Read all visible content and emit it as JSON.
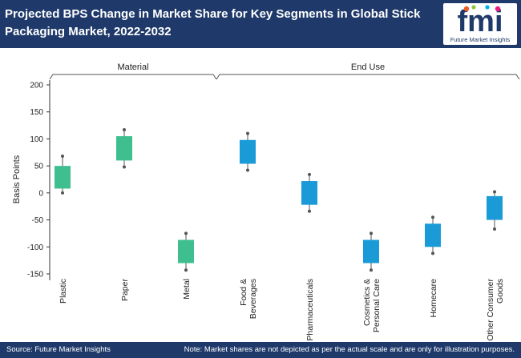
{
  "header": {
    "title_line1": "Projected BPS Change in Market Share for Key Segments in Global Stick",
    "title_line2": "Packaging Market, 2022-2032"
  },
  "logo": {
    "letters": "fmi",
    "tagline": "Future Market Insights"
  },
  "footer": {
    "source": "Source: Future Market Insights",
    "note": "Note: Market shares are not depicted as per the actual scale and are only for illustration purposes."
  },
  "colors": {
    "header_bg": "#1f3a6a",
    "material": "#3fbf8f",
    "end_use": "#1a9bd7",
    "whisker": "#555555"
  },
  "chart_data": {
    "type": "box",
    "ylabel": "Basis Points",
    "ylim": [
      -150,
      200
    ],
    "yticks": [
      -150,
      -100,
      -50,
      0,
      50,
      100,
      150,
      200
    ],
    "groups": [
      {
        "name": "Material",
        "categories": [
          "Plastic",
          "Paper",
          "Metal"
        ]
      },
      {
        "name": "End Use",
        "categories": [
          "Food & Beverages",
          "Pharmaceuticals",
          "Cosmetics & Personal Care",
          "Homecare",
          "Other Consumer Goods"
        ]
      }
    ],
    "boxes": [
      {
        "category": "Plastic",
        "label": [
          "Plastic"
        ],
        "group": "Material",
        "min": 0,
        "q1": 8,
        "q3": 50,
        "max": 68
      },
      {
        "category": "Paper",
        "label": [
          "Paper"
        ],
        "group": "Material",
        "min": 48,
        "q1": 60,
        "q3": 105,
        "max": 117
      },
      {
        "category": "Metal",
        "label": [
          "Metal"
        ],
        "group": "Material",
        "min": -143,
        "q1": -130,
        "q3": -87,
        "max": -75
      },
      {
        "category": "Food & Beverages",
        "label": [
          "Food &",
          "Beverages"
        ],
        "group": "End Use",
        "min": 42,
        "q1": 54,
        "q3": 98,
        "max": 110
      },
      {
        "category": "Pharmaceuticals",
        "label": [
          "Pharmaceuticals"
        ],
        "group": "End Use",
        "min": -34,
        "q1": -22,
        "q3": 22,
        "max": 34
      },
      {
        "category": "Cosmetics & Personal Care",
        "label": [
          "Cosmetics &",
          "Personal Care"
        ],
        "group": "End Use",
        "min": -143,
        "q1": -130,
        "q3": -87,
        "max": -75
      },
      {
        "category": "Homecare",
        "label": [
          "Homecare"
        ],
        "group": "End Use",
        "min": -112,
        "q1": -100,
        "q3": -57,
        "max": -45
      },
      {
        "category": "Other Consumer Goods",
        "label": [
          "Other Consumer",
          "Goods"
        ],
        "group": "End Use",
        "min": -67,
        "q1": -50,
        "q3": -6,
        "max": 2
      }
    ]
  }
}
